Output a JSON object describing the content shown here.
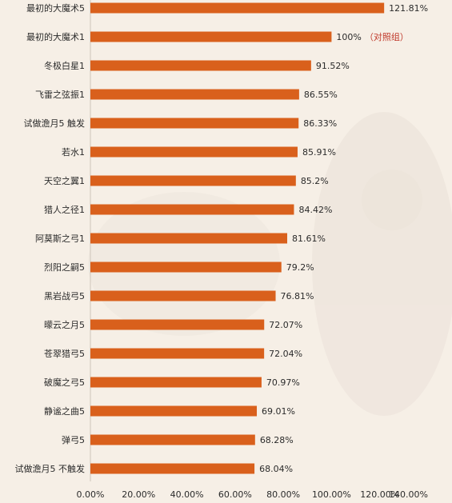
{
  "chart_data": {
    "type": "bar",
    "orientation": "horizontal",
    "categories": [
      "最初的大魔术5",
      "最初的大魔术1",
      "冬极白星1",
      "飞雷之弦振1",
      "试做澹月5 触发",
      "若水1",
      "天空之翼1",
      "猎人之径1",
      "阿莫斯之弓1",
      "烈阳之嗣5",
      "黑岩战弓5",
      "曚云之月5",
      "苍翠猎弓5",
      "破魔之弓5",
      "静谧之曲5",
      "弹弓5",
      "试做澹月5 不触发"
    ],
    "values": [
      121.81,
      100,
      91.52,
      86.55,
      86.33,
      85.91,
      85.2,
      84.42,
      81.61,
      79.2,
      76.81,
      72.07,
      72.04,
      70.97,
      69.01,
      68.28,
      68.04
    ],
    "value_labels": [
      "121.81%",
      "100%",
      "91.52%",
      "86.55%",
      "86.33%",
      "85.91%",
      "85.2%",
      "84.42%",
      "81.61%",
      "79.2%",
      "76.81%",
      "72.07%",
      "72.04%",
      "70.97%",
      "69.01%",
      "68.28%",
      "68.04%"
    ],
    "annotations": [
      {
        "category_index": 1,
        "text": "（对照组）",
        "color": "#c0392b"
      }
    ],
    "xlim": [
      0,
      140
    ],
    "x_ticks": [
      "0.00%",
      "20.00%",
      "40.00%",
      "60.00%",
      "80.00%",
      "100.00%",
      "120.00%",
      "140.00%"
    ],
    "x_tick_values": [
      0,
      20,
      40,
      60,
      80,
      100,
      120,
      140
    ],
    "title": "",
    "xlabel": "",
    "ylabel": "",
    "grid": false,
    "legend": "none",
    "bar_color": "#d9601c",
    "background_color": "#f6efe6"
  }
}
